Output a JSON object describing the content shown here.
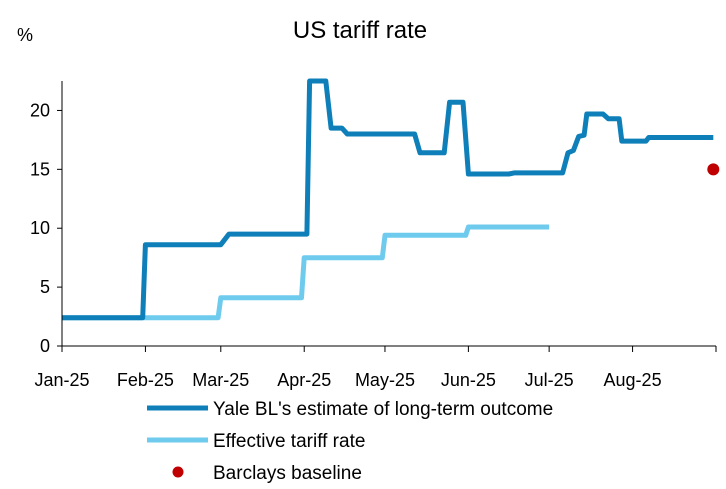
{
  "chart_data": {
    "type": "line",
    "title": "US tariff rate",
    "unit_label": "%",
    "xlabel": "",
    "ylabel": "",
    "x_range": [
      "2025-01-01",
      "2025-09-01"
    ],
    "ylim": [
      0,
      22.5
    ],
    "y_ticks": [
      "0",
      "5",
      "10",
      "15",
      "20"
    ],
    "x_ticks": [
      {
        "date": "2025-01-01",
        "label": "Jan-25"
      },
      {
        "date": "2025-02-01",
        "label": "Feb-25"
      },
      {
        "date": "2025-03-01",
        "label": "Mar-25"
      },
      {
        "date": "2025-04-01",
        "label": "Apr-25"
      },
      {
        "date": "2025-05-01",
        "label": "May-25"
      },
      {
        "date": "2025-06-01",
        "label": "Jun-25"
      },
      {
        "date": "2025-07-01",
        "label": "Jul-25"
      },
      {
        "date": "2025-08-01",
        "label": "Aug-25"
      },
      {
        "date": "2025-09-01",
        "label": ""
      }
    ],
    "grid": false,
    "legend_position": "bottom",
    "series": [
      {
        "name": "Yale BL's estimate of long-term outcome",
        "color": "#0e7fb8",
        "style": "step-line",
        "points": [
          [
            "2025-01-01",
            2.4
          ],
          [
            "2025-01-31",
            2.4
          ],
          [
            "2025-02-01",
            8.6
          ],
          [
            "2025-03-01",
            8.6
          ],
          [
            "2025-03-04",
            9.5
          ],
          [
            "2025-04-02",
            9.5
          ],
          [
            "2025-04-03",
            22.5
          ],
          [
            "2025-04-09",
            22.5
          ],
          [
            "2025-04-11",
            18.5
          ],
          [
            "2025-04-15",
            18.5
          ],
          [
            "2025-04-17",
            18.0
          ],
          [
            "2025-05-12",
            18.0
          ],
          [
            "2025-05-14",
            16.4
          ],
          [
            "2025-05-23",
            16.4
          ],
          [
            "2025-05-25",
            20.7
          ],
          [
            "2025-05-30",
            20.7
          ],
          [
            "2025-06-01",
            14.6
          ],
          [
            "2025-06-16",
            14.6
          ],
          [
            "2025-06-18",
            14.7
          ],
          [
            "2025-07-06",
            14.7
          ],
          [
            "2025-07-08",
            16.4
          ],
          [
            "2025-07-10",
            16.6
          ],
          [
            "2025-07-12",
            17.8
          ],
          [
            "2025-07-14",
            17.9
          ],
          [
            "2025-07-15",
            19.7
          ],
          [
            "2025-07-21",
            19.7
          ],
          [
            "2025-07-23",
            19.3
          ],
          [
            "2025-07-27",
            19.3
          ],
          [
            "2025-07-28",
            17.4
          ],
          [
            "2025-08-06",
            17.4
          ],
          [
            "2025-08-07",
            17.7
          ],
          [
            "2025-08-31",
            17.7
          ]
        ]
      },
      {
        "name": "Effective tariff rate",
        "color": "#6fcbee",
        "style": "step-line",
        "points": [
          [
            "2025-01-01",
            2.4
          ],
          [
            "2025-02-28",
            2.4
          ],
          [
            "2025-03-01",
            4.1
          ],
          [
            "2025-03-31",
            4.1
          ],
          [
            "2025-04-01",
            7.5
          ],
          [
            "2025-04-30",
            7.5
          ],
          [
            "2025-05-01",
            9.4
          ],
          [
            "2025-05-31",
            9.4
          ],
          [
            "2025-06-01",
            10.1
          ],
          [
            "2025-07-01",
            10.1
          ]
        ]
      },
      {
        "name": "Barclays baseline",
        "color": "#c00000",
        "style": "point",
        "points": [
          [
            "2025-08-31",
            15.0
          ]
        ]
      }
    ]
  }
}
